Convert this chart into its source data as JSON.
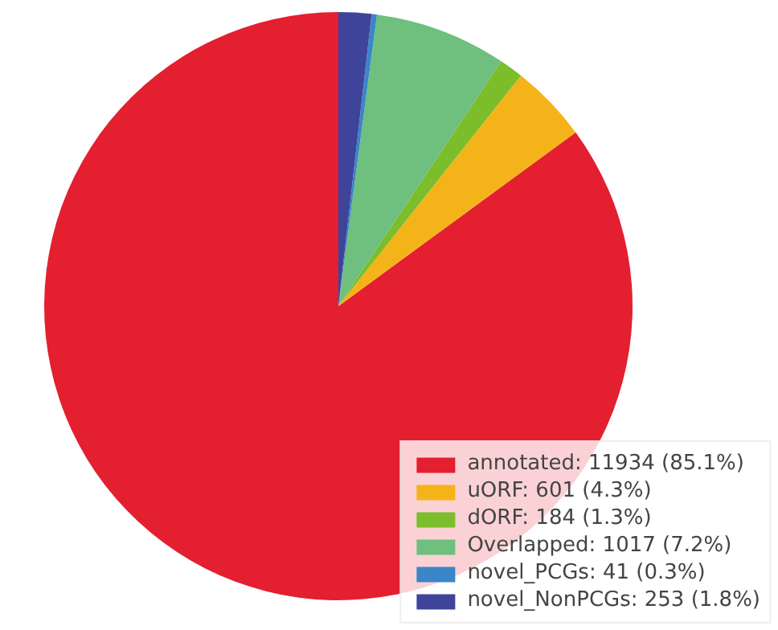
{
  "chart_data": {
    "type": "pie",
    "categories": [
      "annotated: 11934 (85.1%)",
      "uORF: 601 (4.3%)",
      "dORF: 184 (1.3%)",
      "Overlapped: 1017 (7.2%)",
      "novel_PCGs: 41 (0.3%)",
      "novel_NonPCGs: 253 (1.8%)"
    ],
    "values": [
      11934,
      601,
      184,
      1017,
      41,
      253
    ],
    "colors": [
      "#e41f30",
      "#f5b31a",
      "#7bbd2a",
      "#6fbf7f",
      "#3a86c8",
      "#3e449a"
    ],
    "legend": "bottom right"
  }
}
